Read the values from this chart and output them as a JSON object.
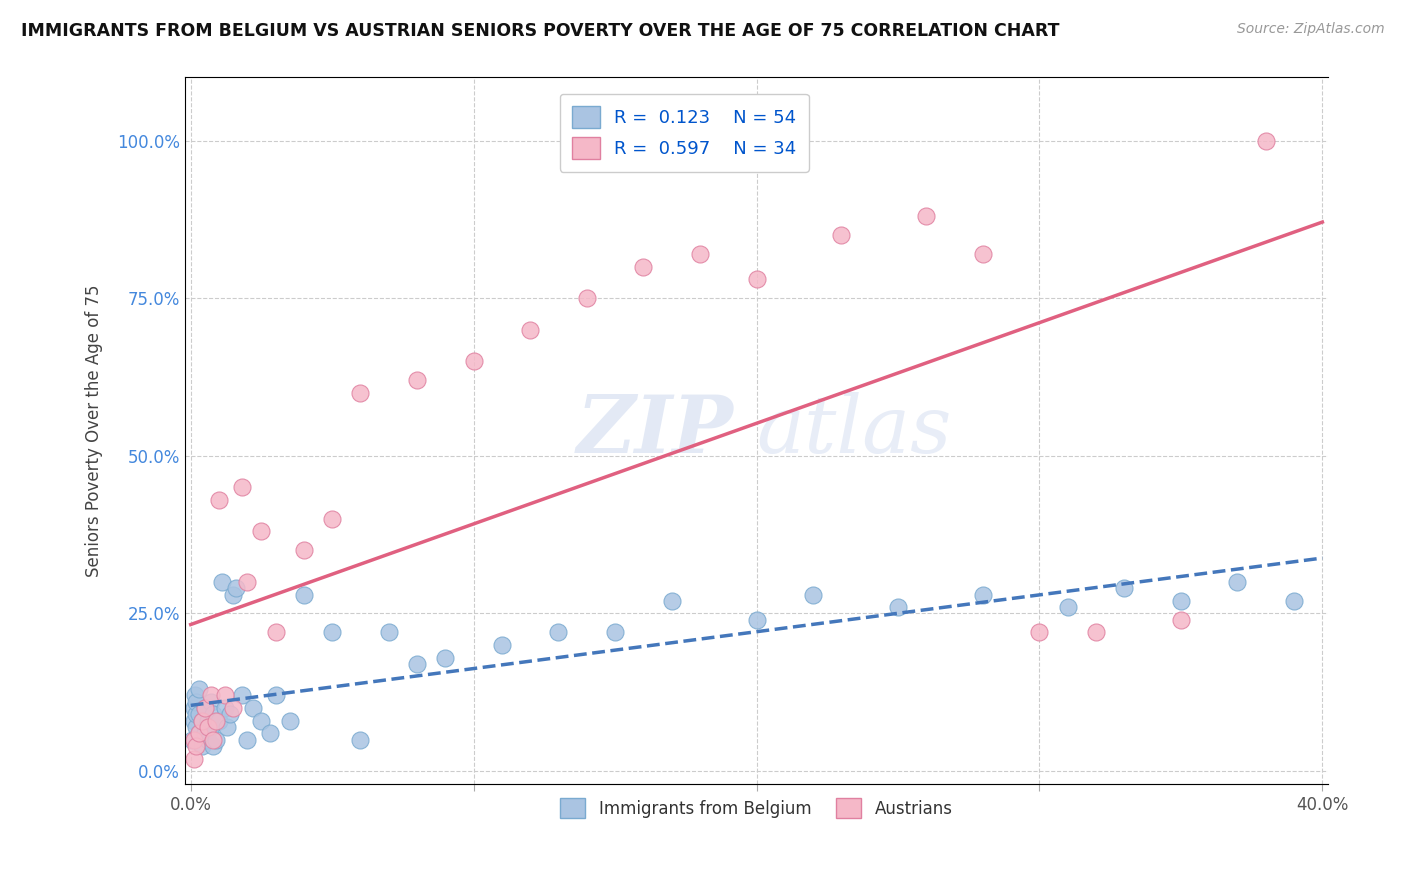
{
  "title": "IMMIGRANTS FROM BELGIUM VS AUSTRIAN SENIORS POVERTY OVER THE AGE OF 75 CORRELATION CHART",
  "source": "Source: ZipAtlas.com",
  "ylabel": "Seniors Poverty Over the Age of 75",
  "xlim": [
    -0.002,
    0.402
  ],
  "ylim": [
    -0.02,
    1.1
  ],
  "xticks": [
    0.0,
    0.1,
    0.2,
    0.3,
    0.4
  ],
  "xticklabels": [
    "0.0%",
    "",
    "",
    "",
    "40.0%"
  ],
  "yticks": [
    0.0,
    0.25,
    0.5,
    0.75,
    1.0
  ],
  "yticklabels": [
    "0.0%",
    "25.0%",
    "50.0%",
    "75.0%",
    "100.0%"
  ],
  "legend_R1": "0.123",
  "legend_N1": "54",
  "legend_R2": "0.597",
  "legend_N2": "34",
  "series1_color": "#aac4e2",
  "series1_edge": "#7aaad0",
  "series2_color": "#f5b8c8",
  "series2_edge": "#e080a0",
  "line1_color": "#4477bb",
  "line2_color": "#e06080",
  "watermark_zip": "ZIP",
  "watermark_atlas": "atlas",
  "belgium_x": [
    0.0005,
    0.001,
    0.001,
    0.0015,
    0.002,
    0.002,
    0.002,
    0.003,
    0.003,
    0.003,
    0.004,
    0.004,
    0.005,
    0.005,
    0.006,
    0.006,
    0.007,
    0.007,
    0.008,
    0.008,
    0.009,
    0.01,
    0.011,
    0.012,
    0.013,
    0.014,
    0.015,
    0.016,
    0.018,
    0.02,
    0.022,
    0.025,
    0.028,
    0.03,
    0.035,
    0.04,
    0.05,
    0.06,
    0.07,
    0.08,
    0.09,
    0.11,
    0.13,
    0.15,
    0.17,
    0.2,
    0.22,
    0.25,
    0.28,
    0.31,
    0.33,
    0.35,
    0.37,
    0.39
  ],
  "belgium_y": [
    0.05,
    0.08,
    0.1,
    0.12,
    0.07,
    0.09,
    0.11,
    0.06,
    0.09,
    0.13,
    0.04,
    0.08,
    0.06,
    0.1,
    0.05,
    0.08,
    0.07,
    0.11,
    0.04,
    0.09,
    0.05,
    0.08,
    0.3,
    0.1,
    0.07,
    0.09,
    0.28,
    0.29,
    0.12,
    0.05,
    0.1,
    0.08,
    0.06,
    0.12,
    0.08,
    0.28,
    0.22,
    0.05,
    0.22,
    0.17,
    0.18,
    0.2,
    0.22,
    0.22,
    0.27,
    0.24,
    0.28,
    0.26,
    0.28,
    0.26,
    0.29,
    0.27,
    0.3,
    0.27
  ],
  "austrian_x": [
    0.001,
    0.001,
    0.002,
    0.003,
    0.004,
    0.005,
    0.006,
    0.007,
    0.008,
    0.009,
    0.01,
    0.012,
    0.015,
    0.018,
    0.02,
    0.025,
    0.03,
    0.04,
    0.05,
    0.06,
    0.08,
    0.1,
    0.12,
    0.14,
    0.16,
    0.18,
    0.2,
    0.23,
    0.26,
    0.28,
    0.3,
    0.32,
    0.35,
    0.38
  ],
  "austrian_y": [
    0.02,
    0.05,
    0.04,
    0.06,
    0.08,
    0.1,
    0.07,
    0.12,
    0.05,
    0.08,
    0.43,
    0.12,
    0.1,
    0.45,
    0.3,
    0.38,
    0.22,
    0.35,
    0.4,
    0.6,
    0.62,
    0.65,
    0.7,
    0.75,
    0.8,
    0.82,
    0.78,
    0.85,
    0.88,
    0.82,
    0.22,
    0.22,
    0.24,
    1.0
  ]
}
